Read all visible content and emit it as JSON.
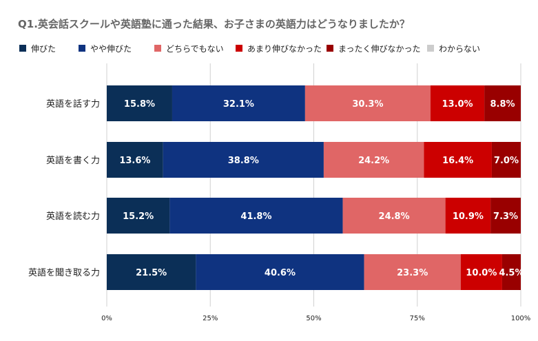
{
  "title": "Q1.英会話スクールや英語塾に通った結果、お子さまの英語力はどうなりましたか？",
  "chart_data": {
    "type": "bar",
    "orientation": "horizontal",
    "stacked": "percent",
    "title": "Q1.英会話スクールや英語塾に通った結果、お子さまの英語力はどうなりましたか？",
    "categories": [
      "英語を話す力",
      "英語を書く力",
      "英語を読む力",
      "英語を聞き取る力"
    ],
    "series": [
      {
        "name": "伸びた",
        "color": "#0b2f57",
        "values": [
          15.8,
          13.6,
          15.2,
          21.5
        ]
      },
      {
        "name": "やや伸びた",
        "color": "#0f3380",
        "values": [
          32.1,
          38.8,
          41.8,
          40.6
        ]
      },
      {
        "name": "どちらでもない",
        "color": "#e06666",
        "values": [
          30.3,
          24.2,
          24.8,
          23.3
        ]
      },
      {
        "name": "あまり伸びなかった",
        "color": "#cc0000",
        "values": [
          13.0,
          16.4,
          10.9,
          10.0
        ]
      },
      {
        "name": "まったく伸びなかった",
        "color": "#990000",
        "values": [
          8.8,
          7.0,
          7.3,
          4.5
        ]
      },
      {
        "name": "わからない",
        "color": "#cccccc",
        "values": [
          0,
          0,
          0,
          0
        ]
      }
    ],
    "x_ticks": [
      "0%",
      "25%",
      "50%",
      "75%",
      "100%"
    ],
    "xlim": [
      0,
      100
    ],
    "value_suffix": "%",
    "grid": true,
    "legend_position": "top-left"
  }
}
